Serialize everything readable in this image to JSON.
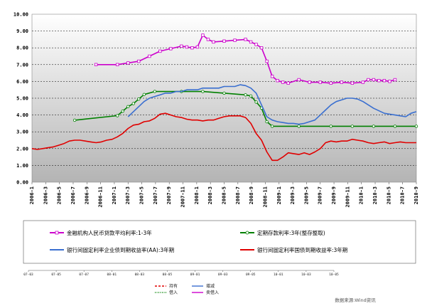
{
  "chart_data": {
    "type": "line",
    "ylim": [
      0,
      10
    ],
    "y_ticks": [
      "0.00",
      "1.00",
      "2.00",
      "3.00",
      "4.00",
      "5.00",
      "6.00",
      "7.00",
      "8.00",
      "9.00",
      "10.00"
    ],
    "x": [
      "2006-1",
      "2006-3",
      "2006-5",
      "2006-7",
      "2006-9",
      "2006-11",
      "2007-1",
      "2007-3",
      "2007-5",
      "2007-7",
      "2007-9",
      "2007-11",
      "2008-1",
      "2008-3",
      "2008-5",
      "2008-7",
      "2008-9",
      "2008-11",
      "2009-1",
      "2009-3",
      "2009-5",
      "2009-7",
      "2009-9",
      "2009-11",
      "2010-1",
      "2010-3",
      "2010-5",
      "2010-7",
      "2010-9"
    ],
    "grid": true,
    "background": "gradient grey",
    "series": [
      {
        "name": "金融机构人民币贷款平均利率:1-3年",
        "color": "#cc00cc",
        "marker": "square",
        "points": [
          [
            12,
            7.0
          ],
          [
            16,
            7.0
          ],
          [
            18,
            7.1
          ],
          [
            20,
            7.2
          ],
          [
            22,
            7.5
          ],
          [
            24,
            7.8
          ],
          [
            26,
            7.95
          ],
          [
            28,
            8.1
          ],
          [
            29,
            8.05
          ],
          [
            30,
            8.0
          ],
          [
            31,
            8.05
          ],
          [
            32,
            8.75
          ],
          [
            33,
            8.5
          ],
          [
            34,
            8.35
          ],
          [
            36,
            8.4
          ],
          [
            38,
            8.45
          ],
          [
            40,
            8.5
          ],
          [
            41,
            8.35
          ],
          [
            42,
            8.2
          ],
          [
            43,
            8.0
          ],
          [
            44,
            7.2
          ],
          [
            45,
            6.3
          ],
          [
            46,
            6.05
          ],
          [
            47,
            5.95
          ],
          [
            48,
            5.9
          ],
          [
            50,
            6.1
          ],
          [
            52,
            5.95
          ],
          [
            54,
            5.95
          ],
          [
            56,
            5.9
          ],
          [
            58,
            5.95
          ],
          [
            60,
            5.9
          ],
          [
            62,
            5.95
          ],
          [
            63,
            6.1
          ],
          [
            64,
            6.1
          ],
          [
            65,
            6.05
          ],
          [
            66,
            6.05
          ],
          [
            67,
            6.0
          ],
          [
            68,
            6.1
          ]
        ]
      },
      {
        "name": "定期存款利率:3年(整存整取)",
        "color": "#008000",
        "marker": "circle",
        "points": [
          [
            8,
            3.69
          ],
          [
            16,
            3.96
          ],
          [
            17,
            4.23
          ],
          [
            18,
            4.5
          ],
          [
            19,
            4.68
          ],
          [
            20,
            4.95
          ],
          [
            21,
            5.22
          ],
          [
            23,
            5.4
          ],
          [
            28,
            5.4
          ],
          [
            32,
            5.4
          ],
          [
            36,
            5.3
          ],
          [
            40,
            5.2
          ],
          [
            41,
            5.13
          ],
          [
            42,
            4.77
          ],
          [
            43,
            4.41
          ],
          [
            44,
            3.6
          ],
          [
            45,
            3.33
          ],
          [
            50,
            3.33
          ],
          [
            56,
            3.33
          ],
          [
            60,
            3.33
          ],
          [
            64,
            3.33
          ],
          [
            68,
            3.33
          ],
          [
            72,
            3.33
          ]
        ]
      },
      {
        "name": "银行间固定利率企业债到期收益率(AA):3年期",
        "color": "#3a6fd0",
        "marker": "none",
        "points": [
          [
            18,
            3.9
          ],
          [
            19,
            4.2
          ],
          [
            20,
            4.5
          ],
          [
            21,
            4.8
          ],
          [
            22,
            5.0
          ],
          [
            23,
            5.1
          ],
          [
            24,
            5.2
          ],
          [
            25,
            5.3
          ],
          [
            26,
            5.3
          ],
          [
            27,
            5.4
          ],
          [
            28,
            5.4
          ],
          [
            29,
            5.5
          ],
          [
            30,
            5.5
          ],
          [
            31,
            5.5
          ],
          [
            32,
            5.6
          ],
          [
            33,
            5.6
          ],
          [
            34,
            5.6
          ],
          [
            35,
            5.6
          ],
          [
            36,
            5.7
          ],
          [
            37,
            5.7
          ],
          [
            38,
            5.7
          ],
          [
            39,
            5.8
          ],
          [
            40,
            5.75
          ],
          [
            41,
            5.6
          ],
          [
            42,
            5.3
          ],
          [
            43,
            4.6
          ],
          [
            44,
            3.9
          ],
          [
            45,
            3.7
          ],
          [
            46,
            3.6
          ],
          [
            47,
            3.55
          ],
          [
            48,
            3.5
          ],
          [
            49,
            3.5
          ],
          [
            50,
            3.45
          ],
          [
            51,
            3.5
          ],
          [
            52,
            3.6
          ],
          [
            53,
            3.7
          ],
          [
            54,
            4.0
          ],
          [
            55,
            4.3
          ],
          [
            56,
            4.6
          ],
          [
            57,
            4.8
          ],
          [
            58,
            4.9
          ],
          [
            59,
            5.0
          ],
          [
            60,
            5.0
          ],
          [
            61,
            4.95
          ],
          [
            62,
            4.8
          ],
          [
            63,
            4.6
          ],
          [
            64,
            4.4
          ],
          [
            65,
            4.25
          ],
          [
            66,
            4.1
          ],
          [
            67,
            4.05
          ],
          [
            68,
            4.0
          ],
          [
            69,
            3.95
          ],
          [
            70,
            3.9
          ],
          [
            71,
            4.1
          ],
          [
            72,
            4.2
          ]
        ]
      },
      {
        "name": "银行间固定利率国债到期收益率:3年期",
        "color": "#e00000",
        "marker": "none",
        "points": [
          [
            0,
            2.0
          ],
          [
            1,
            1.95
          ],
          [
            2,
            2.0
          ],
          [
            3,
            2.05
          ],
          [
            4,
            2.1
          ],
          [
            5,
            2.2
          ],
          [
            6,
            2.3
          ],
          [
            7,
            2.45
          ],
          [
            8,
            2.5
          ],
          [
            9,
            2.5
          ],
          [
            10,
            2.45
          ],
          [
            11,
            2.4
          ],
          [
            12,
            2.35
          ],
          [
            13,
            2.4
          ],
          [
            14,
            2.5
          ],
          [
            15,
            2.55
          ],
          [
            16,
            2.7
          ],
          [
            17,
            2.9
          ],
          [
            18,
            3.2
          ],
          [
            19,
            3.4
          ],
          [
            20,
            3.45
          ],
          [
            21,
            3.6
          ],
          [
            22,
            3.65
          ],
          [
            23,
            3.8
          ],
          [
            24,
            4.05
          ],
          [
            25,
            4.1
          ],
          [
            26,
            4.0
          ],
          [
            27,
            3.9
          ],
          [
            28,
            3.85
          ],
          [
            29,
            3.75
          ],
          [
            30,
            3.7
          ],
          [
            31,
            3.7
          ],
          [
            32,
            3.65
          ],
          [
            33,
            3.7
          ],
          [
            34,
            3.7
          ],
          [
            35,
            3.8
          ],
          [
            36,
            3.9
          ],
          [
            37,
            3.95
          ],
          [
            38,
            3.95
          ],
          [
            39,
            3.95
          ],
          [
            40,
            3.85
          ],
          [
            41,
            3.5
          ],
          [
            42,
            2.9
          ],
          [
            43,
            2.5
          ],
          [
            44,
            1.8
          ],
          [
            45,
            1.3
          ],
          [
            46,
            1.3
          ],
          [
            47,
            1.5
          ],
          [
            48,
            1.75
          ],
          [
            49,
            1.7
          ],
          [
            50,
            1.65
          ],
          [
            51,
            1.75
          ],
          [
            52,
            1.65
          ],
          [
            53,
            1.8
          ],
          [
            54,
            2.0
          ],
          [
            55,
            2.35
          ],
          [
            56,
            2.45
          ],
          [
            57,
            2.4
          ],
          [
            58,
            2.45
          ],
          [
            59,
            2.45
          ],
          [
            60,
            2.55
          ],
          [
            61,
            2.5
          ],
          [
            62,
            2.45
          ],
          [
            63,
            2.35
          ],
          [
            64,
            2.3
          ],
          [
            65,
            2.35
          ],
          [
            66,
            2.4
          ],
          [
            67,
            2.3
          ],
          [
            68,
            2.35
          ],
          [
            69,
            2.4
          ],
          [
            70,
            2.35
          ],
          [
            71,
            2.35
          ],
          [
            72,
            2.35
          ]
        ]
      }
    ]
  },
  "mini_axis": {
    "ticks": [
      "07-03",
      "07-05",
      "07-07",
      "08-01",
      "08-03",
      "08-05",
      "09-01",
      "09-03",
      "09-05",
      "10-01",
      "10-03",
      "10-05"
    ]
  },
  "mini_legend": {
    "items": [
      {
        "label": "持有",
        "color": "#e00000",
        "dash": "3,2"
      },
      {
        "label": "增减",
        "color": "#3a6fd0",
        "dash": ""
      },
      {
        "label": "借入",
        "color": "#008000",
        "dash": "1,1.5"
      },
      {
        "label": "卖借入",
        "color": "#cc00cc",
        "dash": ""
      }
    ]
  },
  "source": "数据来源:Wind资讯"
}
